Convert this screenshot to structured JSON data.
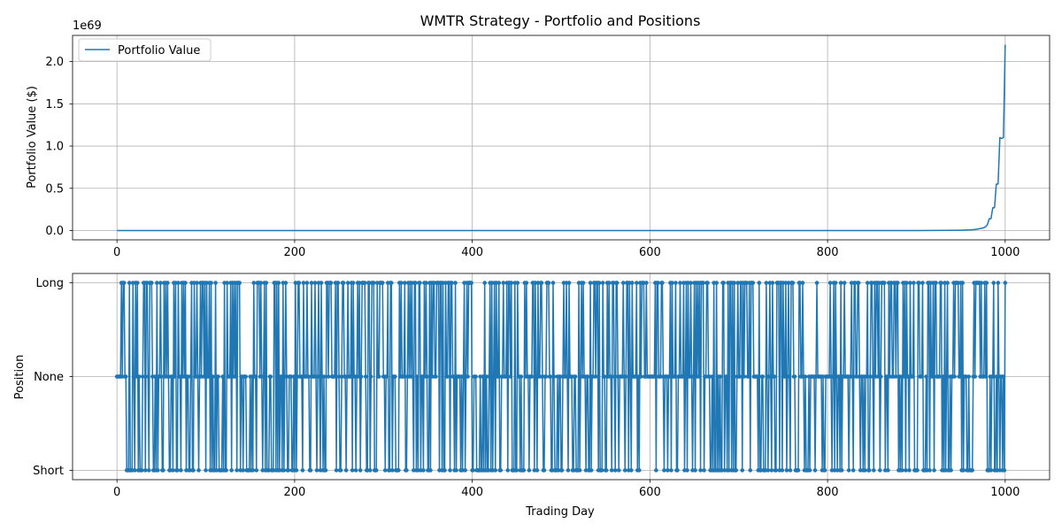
{
  "chart_data": [
    {
      "type": "line",
      "title": "WMTR Strategy - Portfolio and Positions",
      "xlabel": "",
      "ylabel": "Portfolio Value ($)",
      "y_offset_label": "1e69",
      "y_scale": 1e+69,
      "xlim": [
        -50,
        1050
      ],
      "ylim": [
        -0.11,
        2.31
      ],
      "x_ticks": [
        0,
        200,
        400,
        600,
        800,
        1000
      ],
      "x_tick_labels": [
        "0",
        "200",
        "400",
        "600",
        "800",
        "1000"
      ],
      "y_ticks": [
        0.0,
        0.5,
        1.0,
        1.5,
        2.0
      ],
      "y_tick_labels": [
        "0.0",
        "0.5",
        "1.0",
        "1.5",
        "2.0"
      ],
      "grid": true,
      "legend_position": "top-left",
      "series": [
        {
          "name": "Portfolio Value",
          "color": "#1f77b4",
          "x": [
            0,
            900,
            940,
            950,
            960,
            965,
            970,
            975,
            978,
            980,
            982,
            984,
            986,
            988,
            990,
            992,
            994,
            996,
            998,
            1000
          ],
          "y": [
            0,
            0,
            0.002,
            0.004,
            0.008,
            0.012,
            0.02,
            0.03,
            0.045,
            0.07,
            0.14,
            0.14,
            0.27,
            0.27,
            0.55,
            0.55,
            1.1,
            1.09,
            1.1,
            2.2
          ]
        }
      ]
    },
    {
      "type": "line",
      "title": "",
      "xlabel": "Trading Day",
      "ylabel": "Position",
      "xlim": [
        -50,
        1050
      ],
      "ylim": [
        -1.1,
        1.1
      ],
      "x_ticks": [
        0,
        200,
        400,
        600,
        800,
        1000
      ],
      "x_tick_labels": [
        "0",
        "200",
        "400",
        "600",
        "800",
        "1000"
      ],
      "y_ticks": [
        -1,
        0,
        1
      ],
      "y_tick_labels": [
        "Short",
        "None",
        "Long"
      ],
      "grid": true,
      "marker": "circle",
      "series": [
        {
          "color": "#1f77b4",
          "x_start": 0,
          "x_end": 1000,
          "values": []
        }
      ]
    }
  ]
}
